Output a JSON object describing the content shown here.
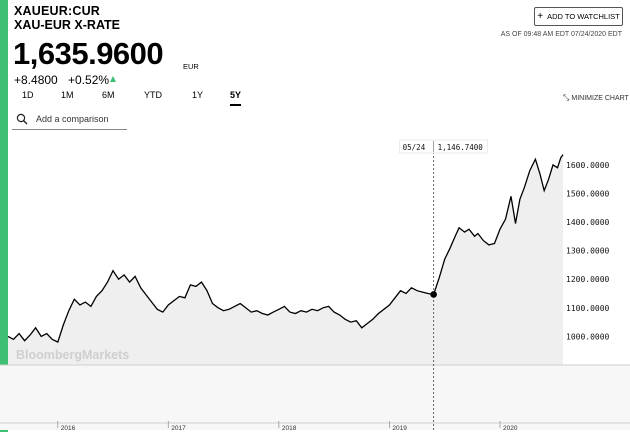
{
  "header": {
    "ticker": "XAUEUR:CUR",
    "name": "XAU-EUR X-RATE",
    "price": "1,635.9600",
    "currency": "EUR",
    "change": "+8.4800",
    "change_pct": "+0.52%",
    "watchlist_label": "ADD TO WATCHLIST",
    "as_of": "AS OF 09:48 AM EDT 07/24/2020 EDT",
    "up_color": "#3fbf74"
  },
  "controls": {
    "ranges": [
      "1D",
      "1M",
      "6M",
      "YTD",
      "1Y",
      "5Y"
    ],
    "active_range": "5Y",
    "minimize_label": "MINIMIZE CHART",
    "compare_placeholder": "Add a comparison"
  },
  "chart_data": {
    "type": "area",
    "title": "",
    "xlabel": "",
    "ylabel": "",
    "x_ticks": [
      "2016",
      "2017",
      "2018",
      "2019",
      "2020"
    ],
    "y_ticks": [
      "1000.0000",
      "1100.0000",
      "1200.0000",
      "1300.0000",
      "1400.0000",
      "1500.0000",
      "1600.0000"
    ],
    "ylim": [
      900,
      1680
    ],
    "xlim": [
      2015.55,
      2020.57
    ],
    "grid": false,
    "line_color": "#000000",
    "fill_color": "#efefef",
    "watermark": "BloombergMarkets",
    "tooltip": {
      "x": 2019.4,
      "date": "05/24",
      "value": "1,146.7400"
    },
    "series": [
      {
        "points": [
          [
            2015.55,
            1000
          ],
          [
            2015.6,
            990
          ],
          [
            2015.65,
            1010
          ],
          [
            2015.7,
            985
          ],
          [
            2015.75,
            1005
          ],
          [
            2015.8,
            1030
          ],
          [
            2015.85,
            1000
          ],
          [
            2015.9,
            1010
          ],
          [
            2015.95,
            990
          ],
          [
            2016.0,
            980
          ],
          [
            2016.05,
            1040
          ],
          [
            2016.1,
            1090
          ],
          [
            2016.15,
            1130
          ],
          [
            2016.2,
            1110
          ],
          [
            2016.25,
            1120
          ],
          [
            2016.3,
            1105
          ],
          [
            2016.35,
            1140
          ],
          [
            2016.4,
            1160
          ],
          [
            2016.45,
            1190
          ],
          [
            2016.5,
            1230
          ],
          [
            2016.55,
            1200
          ],
          [
            2016.6,
            1215
          ],
          [
            2016.65,
            1190
          ],
          [
            2016.7,
            1210
          ],
          [
            2016.75,
            1170
          ],
          [
            2016.8,
            1145
          ],
          [
            2016.85,
            1120
          ],
          [
            2016.9,
            1095
          ],
          [
            2016.95,
            1085
          ],
          [
            2017.0,
            1110
          ],
          [
            2017.05,
            1125
          ],
          [
            2017.1,
            1140
          ],
          [
            2017.15,
            1135
          ],
          [
            2017.2,
            1180
          ],
          [
            2017.25,
            1175
          ],
          [
            2017.3,
            1190
          ],
          [
            2017.35,
            1160
          ],
          [
            2017.4,
            1115
          ],
          [
            2017.45,
            1100
          ],
          [
            2017.5,
            1090
          ],
          [
            2017.55,
            1095
          ],
          [
            2017.6,
            1105
          ],
          [
            2017.65,
            1115
          ],
          [
            2017.7,
            1100
          ],
          [
            2017.75,
            1085
          ],
          [
            2017.8,
            1090
          ],
          [
            2017.85,
            1080
          ],
          [
            2017.9,
            1075
          ],
          [
            2017.95,
            1085
          ],
          [
            2018.0,
            1095
          ],
          [
            2018.05,
            1105
          ],
          [
            2018.1,
            1085
          ],
          [
            2018.15,
            1080
          ],
          [
            2018.2,
            1090
          ],
          [
            2018.25,
            1085
          ],
          [
            2018.3,
            1095
          ],
          [
            2018.35,
            1090
          ],
          [
            2018.4,
            1100
          ],
          [
            2018.45,
            1105
          ],
          [
            2018.5,
            1085
          ],
          [
            2018.55,
            1075
          ],
          [
            2018.6,
            1060
          ],
          [
            2018.65,
            1050
          ],
          [
            2018.7,
            1055
          ],
          [
            2018.75,
            1030
          ],
          [
            2018.8,
            1045
          ],
          [
            2018.85,
            1060
          ],
          [
            2018.9,
            1080
          ],
          [
            2018.95,
            1095
          ],
          [
            2019.0,
            1110
          ],
          [
            2019.05,
            1135
          ],
          [
            2019.1,
            1160
          ],
          [
            2019.15,
            1150
          ],
          [
            2019.2,
            1170
          ],
          [
            2019.25,
            1160
          ],
          [
            2019.3,
            1155
          ],
          [
            2019.35,
            1150
          ],
          [
            2019.4,
            1146.74
          ],
          [
            2019.45,
            1205
          ],
          [
            2019.5,
            1270
          ],
          [
            2019.55,
            1310
          ],
          [
            2019.6,
            1355
          ],
          [
            2019.63,
            1380
          ],
          [
            2019.68,
            1365
          ],
          [
            2019.72,
            1375
          ],
          [
            2019.77,
            1350
          ],
          [
            2019.8,
            1360
          ],
          [
            2019.85,
            1335
          ],
          [
            2019.9,
            1320
          ],
          [
            2019.95,
            1325
          ],
          [
            2020.0,
            1375
          ],
          [
            2020.05,
            1410
          ],
          [
            2020.1,
            1490
          ],
          [
            2020.14,
            1395
          ],
          [
            2020.18,
            1480
          ],
          [
            2020.22,
            1520
          ],
          [
            2020.27,
            1580
          ],
          [
            2020.32,
            1620
          ],
          [
            2020.36,
            1570
          ],
          [
            2020.4,
            1510
          ],
          [
            2020.44,
            1550
          ],
          [
            2020.48,
            1600
          ],
          [
            2020.52,
            1590
          ],
          [
            2020.55,
            1625
          ],
          [
            2020.57,
            1635.96
          ]
        ]
      }
    ]
  }
}
